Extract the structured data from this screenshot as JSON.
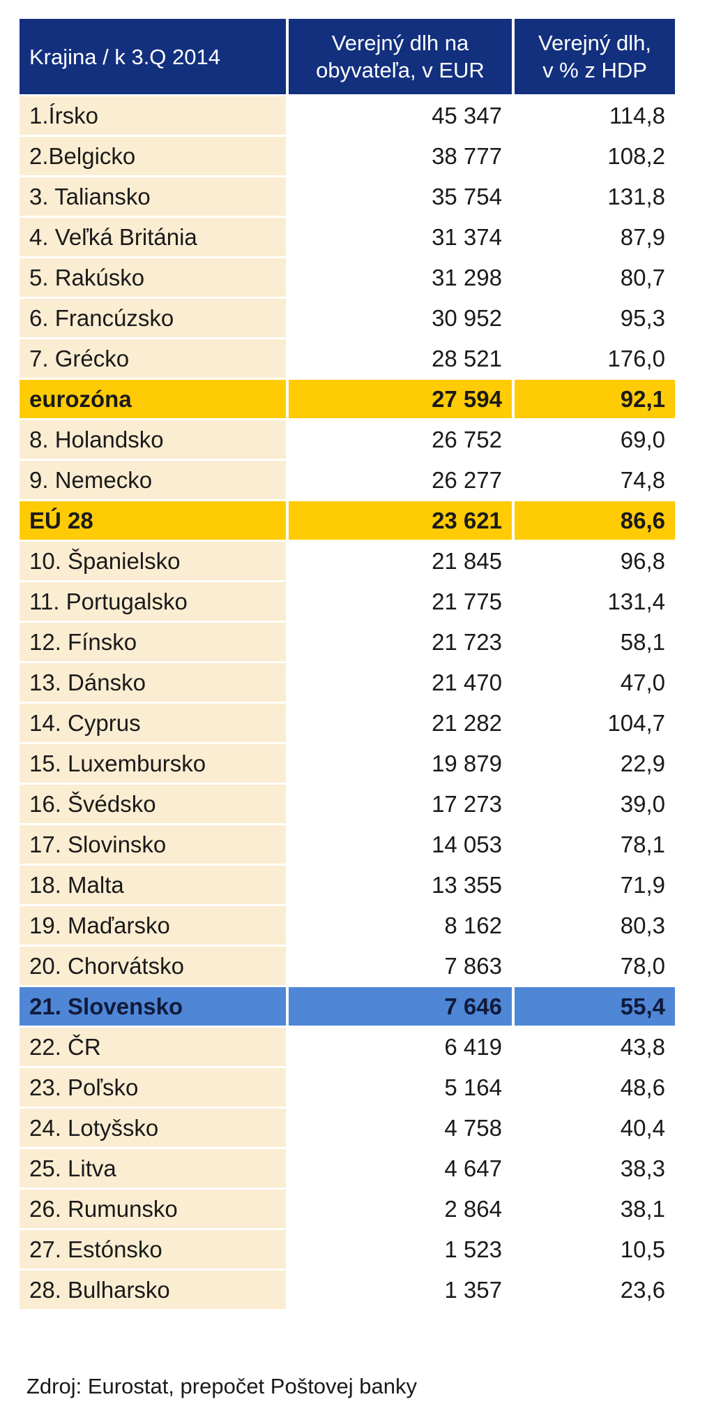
{
  "chart_data": {
    "type": "table",
    "columns": [
      [
        "Krajina / k 3.Q 2014"
      ],
      [
        "Verejný dlh na",
        "obyvateľa, v EUR"
      ],
      [
        "Verejný dlh,",
        "v %  z HDP"
      ]
    ],
    "rows": [
      {
        "country": "1.Írsko",
        "debt_per_capita": "45 347",
        "debt_gdp": "114,8",
        "highlight": ""
      },
      {
        "country": "2.Belgicko",
        "debt_per_capita": "38 777",
        "debt_gdp": "108,2",
        "highlight": ""
      },
      {
        "country": "3. Taliansko",
        "debt_per_capita": "35 754",
        "debt_gdp": "131,8",
        "highlight": ""
      },
      {
        "country": "4. Veľká Británia",
        "debt_per_capita": "31 374",
        "debt_gdp": "87,9",
        "highlight": ""
      },
      {
        "country": "5. Rakúsko",
        "debt_per_capita": "31 298",
        "debt_gdp": "80,7",
        "highlight": ""
      },
      {
        "country": "6. Francúzsko",
        "debt_per_capita": "30 952",
        "debt_gdp": "95,3",
        "highlight": ""
      },
      {
        "country": "7. Grécko",
        "debt_per_capita": "28 521",
        "debt_gdp": "176,0",
        "highlight": ""
      },
      {
        "country": "eurozóna",
        "debt_per_capita": "27 594",
        "debt_gdp": "92,1",
        "highlight": "yellow"
      },
      {
        "country": "8. Holandsko",
        "debt_per_capita": "26 752",
        "debt_gdp": "69,0",
        "highlight": ""
      },
      {
        "country": "9. Nemecko",
        "debt_per_capita": "26 277",
        "debt_gdp": "74,8",
        "highlight": ""
      },
      {
        "country": "EÚ 28",
        "debt_per_capita": "23 621",
        "debt_gdp": "86,6",
        "highlight": "yellow"
      },
      {
        "country": "10. Španielsko",
        "debt_per_capita": "21 845",
        "debt_gdp": "96,8",
        "highlight": ""
      },
      {
        "country": "11. Portugalsko",
        "debt_per_capita": "21 775",
        "debt_gdp": "131,4",
        "highlight": ""
      },
      {
        "country": "12. Fínsko",
        "debt_per_capita": "21 723",
        "debt_gdp": "58,1",
        "highlight": ""
      },
      {
        "country": "13. Dánsko",
        "debt_per_capita": "21 470",
        "debt_gdp": "47,0",
        "highlight": ""
      },
      {
        "country": "14. Cyprus",
        "debt_per_capita": "21 282",
        "debt_gdp": "104,7",
        "highlight": ""
      },
      {
        "country": "15. Luxembursko",
        "debt_per_capita": "19 879",
        "debt_gdp": "22,9",
        "highlight": ""
      },
      {
        "country": "16. Švédsko",
        "debt_per_capita": "17 273",
        "debt_gdp": "39,0",
        "highlight": ""
      },
      {
        "country": "17. Slovinsko",
        "debt_per_capita": "14 053",
        "debt_gdp": "78,1",
        "highlight": ""
      },
      {
        "country": "18. Malta",
        "debt_per_capita": "13 355",
        "debt_gdp": "71,9",
        "highlight": ""
      },
      {
        "country": "19. Maďarsko",
        "debt_per_capita": "8 162",
        "debt_gdp": "80,3",
        "highlight": ""
      },
      {
        "country": "20. Chorvátsko",
        "debt_per_capita": "7 863",
        "debt_gdp": "78,0",
        "highlight": ""
      },
      {
        "country": "21. Slovensko",
        "debt_per_capita": "7 646",
        "debt_gdp": "55,4",
        "highlight": "blue"
      },
      {
        "country": "22. ČR",
        "debt_per_capita": "6 419",
        "debt_gdp": "43,8",
        "highlight": ""
      },
      {
        "country": "23. Poľsko",
        "debt_per_capita": "5 164",
        "debt_gdp": "48,6",
        "highlight": ""
      },
      {
        "country": "24. Lotyšsko",
        "debt_per_capita": "4 758",
        "debt_gdp": "40,4",
        "highlight": ""
      },
      {
        "country": "25. Litva",
        "debt_per_capita": "4 647",
        "debt_gdp": "38,3",
        "highlight": ""
      },
      {
        "country": "26. Rumunsko",
        "debt_per_capita": "2 864",
        "debt_gdp": "38,1",
        "highlight": ""
      },
      {
        "country": "27. Estónsko",
        "debt_per_capita": "1 523",
        "debt_gdp": "10,5",
        "highlight": ""
      },
      {
        "country": "28. Bulharsko",
        "debt_per_capita": "1 357",
        "debt_gdp": "23,6",
        "highlight": ""
      }
    ],
    "source": "Zdroj: Eurostat, prepočet Poštovej banky"
  },
  "colors": {
    "header_bg": "#13307f",
    "header_text": "#ffffff",
    "country_cell_bg": "#fbedd2",
    "highlight_yellow": "#ffcb05",
    "highlight_blue": "#4f86d6"
  }
}
